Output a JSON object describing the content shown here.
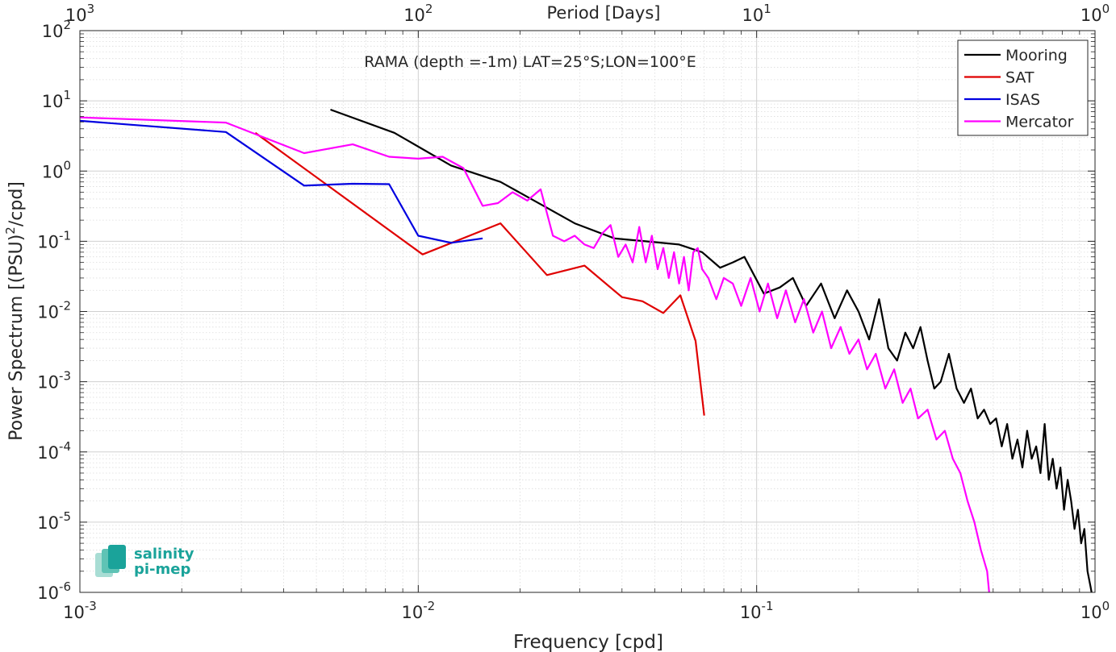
{
  "chart_data": {
    "type": "line",
    "title": "RAMA (depth =-1m) LAT=25°S;LON=100°E",
    "xlabel": "Frequency [cpd]",
    "ylabel_main": "Power Spectrum [(PSU)",
    "ylabel_sup": "2",
    "ylabel_tail": "/cpd]",
    "x2label": "Period [Days]",
    "xscale": "log",
    "yscale": "log",
    "xlim": [
      0.001,
      1
    ],
    "ylim": [
      1e-06,
      100
    ],
    "grid": true,
    "legend_position": "top-right",
    "x_ticks": [
      {
        "value": 0.001,
        "base": "10",
        "exp": "-3"
      },
      {
        "value": 0.01,
        "base": "10",
        "exp": "-2"
      },
      {
        "value": 0.1,
        "base": "10",
        "exp": "-1"
      },
      {
        "value": 1,
        "base": "10",
        "exp": "0"
      }
    ],
    "x2_ticks": [
      {
        "value": 0.001,
        "base": "10",
        "exp": "3"
      },
      {
        "value": 0.01,
        "base": "10",
        "exp": "2"
      },
      {
        "value": 0.1,
        "base": "10",
        "exp": "1"
      },
      {
        "value": 1,
        "base": "10",
        "exp": "0"
      }
    ],
    "y_ticks": [
      {
        "value": 100,
        "base": "10",
        "exp": "2"
      },
      {
        "value": 10,
        "base": "10",
        "exp": "1"
      },
      {
        "value": 1,
        "base": "10",
        "exp": "0"
      },
      {
        "value": 0.1,
        "base": "10",
        "exp": "-1"
      },
      {
        "value": 0.01,
        "base": "10",
        "exp": "-2"
      },
      {
        "value": 0.001,
        "base": "10",
        "exp": "-3"
      },
      {
        "value": 0.0001,
        "base": "10",
        "exp": "-4"
      },
      {
        "value": 1e-05,
        "base": "10",
        "exp": "-5"
      },
      {
        "value": 1e-06,
        "base": "10",
        "exp": "-6"
      }
    ],
    "series": [
      {
        "name": "Mooring",
        "color": "#000000",
        "x": [
          0.0055,
          0.0085,
          0.0125,
          0.0175,
          0.022,
          0.029,
          0.038,
          0.047,
          0.059,
          0.069,
          0.078,
          0.085,
          0.092,
          0.105,
          0.117,
          0.128,
          0.14,
          0.155,
          0.17,
          0.185,
          0.2,
          0.215,
          0.23,
          0.245,
          0.26,
          0.275,
          0.29,
          0.305,
          0.32,
          0.335,
          0.35,
          0.37,
          0.39,
          0.41,
          0.43,
          0.45,
          0.47,
          0.49,
          0.51,
          0.53,
          0.55,
          0.57,
          0.59,
          0.61,
          0.63,
          0.65,
          0.67,
          0.69,
          0.71,
          0.73,
          0.75,
          0.77,
          0.79,
          0.81,
          0.83,
          0.85,
          0.87,
          0.89,
          0.91,
          0.93,
          0.95,
          0.97,
          0.985
        ],
        "y": [
          7.5,
          3.5,
          1.2,
          0.7,
          0.38,
          0.18,
          0.11,
          0.1,
          0.09,
          0.07,
          0.042,
          0.05,
          0.06,
          0.018,
          0.022,
          0.03,
          0.012,
          0.025,
          0.008,
          0.02,
          0.01,
          0.004,
          0.015,
          0.003,
          0.002,
          0.005,
          0.003,
          0.006,
          0.002,
          0.0008,
          0.001,
          0.0025,
          0.0008,
          0.0005,
          0.0008,
          0.0003,
          0.0004,
          0.00025,
          0.0003,
          0.00012,
          0.00025,
          8e-05,
          0.00015,
          6e-05,
          0.0002,
          8e-05,
          0.00012,
          5e-05,
          0.00025,
          4e-05,
          8e-05,
          3e-05,
          6e-05,
          1.5e-05,
          4e-05,
          2e-05,
          8e-06,
          1.5e-05,
          5e-06,
          8e-06,
          2e-06,
          1.2e-06,
          8e-07
        ]
      },
      {
        "name": "SAT",
        "color": "#e00000",
        "x": [
          0.0033,
          0.0103,
          0.0175,
          0.024,
          0.031,
          0.04,
          0.046,
          0.053,
          0.0595,
          0.066,
          0.07
        ],
        "y": [
          3.5,
          0.065,
          0.18,
          0.033,
          0.045,
          0.016,
          0.014,
          0.0095,
          0.017,
          0.0038,
          0.00033
        ]
      },
      {
        "name": "ISAS",
        "color": "#0000e0",
        "x": [
          0.001,
          0.0027,
          0.0046,
          0.0064,
          0.0082,
          0.01,
          0.0125,
          0.0155
        ],
        "y": [
          5.2,
          3.6,
          0.62,
          0.66,
          0.65,
          0.12,
          0.095,
          0.11
        ]
      },
      {
        "name": "Mercator",
        "color": "#ff00ff",
        "x": [
          0.001,
          0.0027,
          0.0046,
          0.0064,
          0.0082,
          0.01,
          0.0118,
          0.0136,
          0.0155,
          0.0172,
          0.019,
          0.021,
          0.023,
          0.025,
          0.027,
          0.029,
          0.031,
          0.033,
          0.035,
          0.037,
          0.039,
          0.041,
          0.043,
          0.045,
          0.047,
          0.049,
          0.051,
          0.053,
          0.055,
          0.057,
          0.059,
          0.061,
          0.063,
          0.065,
          0.067,
          0.069,
          0.072,
          0.076,
          0.08,
          0.085,
          0.09,
          0.096,
          0.102,
          0.108,
          0.115,
          0.122,
          0.13,
          0.138,
          0.147,
          0.156,
          0.166,
          0.177,
          0.188,
          0.2,
          0.212,
          0.225,
          0.24,
          0.255,
          0.27,
          0.285,
          0.3,
          0.32,
          0.34,
          0.36,
          0.38,
          0.4,
          0.42,
          0.44,
          0.46,
          0.48,
          0.49
        ],
        "y": [
          5.8,
          4.9,
          1.8,
          2.4,
          1.6,
          1.5,
          1.6,
          1.1,
          0.32,
          0.35,
          0.5,
          0.38,
          0.55,
          0.12,
          0.1,
          0.12,
          0.09,
          0.08,
          0.13,
          0.17,
          0.06,
          0.09,
          0.05,
          0.16,
          0.05,
          0.12,
          0.04,
          0.08,
          0.03,
          0.07,
          0.025,
          0.06,
          0.02,
          0.07,
          0.08,
          0.04,
          0.03,
          0.015,
          0.03,
          0.025,
          0.012,
          0.03,
          0.01,
          0.025,
          0.008,
          0.02,
          0.007,
          0.015,
          0.005,
          0.01,
          0.003,
          0.006,
          0.0025,
          0.004,
          0.0015,
          0.0025,
          0.0008,
          0.0015,
          0.0005,
          0.0008,
          0.0003,
          0.0004,
          0.00015,
          0.0002,
          8e-05,
          5e-05,
          2e-05,
          1e-05,
          4e-06,
          2e-06,
          7e-07
        ]
      }
    ]
  },
  "logo": {
    "line1": "salinity",
    "line2": "pi-mep",
    "color": "#1aa39a"
  }
}
